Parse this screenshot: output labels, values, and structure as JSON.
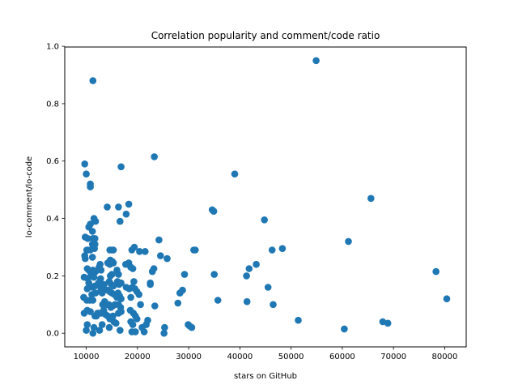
{
  "chart_data": {
    "type": "scatter",
    "title": "Correlation popularity and comment/code ratio",
    "xlabel": "stars on GitHub",
    "ylabel": "lo-comment/lo-code",
    "xlim": [
      5800,
      84200
    ],
    "ylim": [
      -0.0475,
      0.9975
    ],
    "xticks": [
      10000,
      20000,
      30000,
      40000,
      50000,
      60000,
      70000,
      80000
    ],
    "yticks": [
      0.0,
      0.2,
      0.4,
      0.6,
      0.8,
      1.0
    ],
    "xtick_labels": [
      "10000",
      "20000",
      "30000",
      "40000",
      "50000",
      "60000",
      "70000",
      "80000"
    ],
    "ytick_labels": [
      "0.0",
      "0.2",
      "0.4",
      "0.6",
      "0.8",
      "1.0"
    ],
    "grid": false,
    "marker_color": "#1f77b4",
    "points": [
      [
        9700,
        0.59
      ],
      [
        10000,
        0.555
      ],
      [
        10800,
        0.52
      ],
      [
        10800,
        0.51
      ],
      [
        11300,
        0.88
      ],
      [
        9800,
        0.335
      ],
      [
        10300,
        0.33
      ],
      [
        10500,
        0.37
      ],
      [
        10800,
        0.38
      ],
      [
        11500,
        0.4
      ],
      [
        11800,
        0.39
      ],
      [
        11200,
        0.355
      ],
      [
        11300,
        0.33
      ],
      [
        11700,
        0.33
      ],
      [
        11200,
        0.31
      ],
      [
        11700,
        0.31
      ],
      [
        11600,
        0.295
      ],
      [
        11200,
        0.265
      ],
      [
        9800,
        0.26
      ],
      [
        9700,
        0.27
      ],
      [
        10100,
        0.29
      ],
      [
        10300,
        0.29
      ],
      [
        10800,
        0.29
      ],
      [
        10200,
        0.225
      ],
      [
        10500,
        0.22
      ],
      [
        10800,
        0.215
      ],
      [
        11300,
        0.22
      ],
      [
        11800,
        0.215
      ],
      [
        9600,
        0.195
      ],
      [
        10300,
        0.19
      ],
      [
        10900,
        0.2
      ],
      [
        11500,
        0.195
      ],
      [
        10500,
        0.175
      ],
      [
        11200,
        0.16
      ],
      [
        11700,
        0.165
      ],
      [
        10200,
        0.155
      ],
      [
        11100,
        0.135
      ],
      [
        11800,
        0.14
      ],
      [
        9500,
        0.125
      ],
      [
        10100,
        0.115
      ],
      [
        10700,
        0.115
      ],
      [
        11300,
        0.115
      ],
      [
        9600,
        0.07
      ],
      [
        10200,
        0.08
      ],
      [
        10800,
        0.075
      ],
      [
        10000,
        0.01
      ],
      [
        10200,
        0.03
      ],
      [
        11300,
        0.0
      ],
      [
        11500,
        0.02
      ],
      [
        11700,
        0.06
      ],
      [
        12000,
        0.06
      ],
      [
        12200,
        0.07
      ],
      [
        12500,
        0.07
      ],
      [
        12500,
        0.23
      ],
      [
        12700,
        0.24
      ],
      [
        12900,
        0.22
      ],
      [
        12800,
        0.19
      ],
      [
        12400,
        0.175
      ],
      [
        12800,
        0.16
      ],
      [
        12900,
        0.15
      ],
      [
        13100,
        0.14
      ],
      [
        13300,
        0.16
      ],
      [
        13500,
        0.17
      ],
      [
        12600,
        0.01
      ],
      [
        13100,
        0.03
      ],
      [
        13000,
        0.07
      ],
      [
        13400,
        0.08
      ],
      [
        13800,
        0.065
      ],
      [
        13200,
        0.1
      ],
      [
        13600,
        0.11
      ],
      [
        14000,
        0.1
      ],
      [
        14100,
        0.44
      ],
      [
        14200,
        0.245
      ],
      [
        14600,
        0.24
      ],
      [
        14600,
        0.29
      ],
      [
        15000,
        0.29
      ],
      [
        15300,
        0.29
      ],
      [
        14700,
        0.255
      ],
      [
        15100,
        0.25
      ],
      [
        15300,
        0.245
      ],
      [
        14700,
        0.2
      ],
      [
        15000,
        0.205
      ],
      [
        14500,
        0.18
      ],
      [
        14900,
        0.17
      ],
      [
        15300,
        0.165
      ],
      [
        14200,
        0.15
      ],
      [
        14600,
        0.145
      ],
      [
        15000,
        0.14
      ],
      [
        15500,
        0.135
      ],
      [
        14400,
        0.1
      ],
      [
        14800,
        0.09
      ],
      [
        15200,
        0.095
      ],
      [
        15600,
        0.1
      ],
      [
        14200,
        0.06
      ],
      [
        14600,
        0.05
      ],
      [
        14900,
        0.055
      ],
      [
        15200,
        0.06
      ],
      [
        14500,
        0.02
      ],
      [
        15400,
        0.04
      ],
      [
        15800,
        0.035
      ],
      [
        16300,
        0.44
      ],
      [
        16800,
        0.58
      ],
      [
        16600,
        0.39
      ],
      [
        16000,
        0.22
      ],
      [
        16300,
        0.205
      ],
      [
        16100,
        0.18
      ],
      [
        16400,
        0.17
      ],
      [
        16800,
        0.175
      ],
      [
        16200,
        0.14
      ],
      [
        16500,
        0.13
      ],
      [
        16000,
        0.125
      ],
      [
        16800,
        0.12
      ],
      [
        16300,
        0.1
      ],
      [
        16700,
        0.09
      ],
      [
        16300,
        0.07
      ],
      [
        16800,
        0.075
      ],
      [
        16600,
        0.01
      ],
      [
        17800,
        0.415
      ],
      [
        18300,
        0.45
      ],
      [
        17700,
        0.24
      ],
      [
        18300,
        0.245
      ],
      [
        18900,
        0.29
      ],
      [
        19400,
        0.3
      ],
      [
        18700,
        0.23
      ],
      [
        19100,
        0.225
      ],
      [
        17800,
        0.16
      ],
      [
        18400,
        0.155
      ],
      [
        19000,
        0.16
      ],
      [
        19500,
        0.155
      ],
      [
        18700,
        0.125
      ],
      [
        19300,
        0.18
      ],
      [
        19900,
        0.145
      ],
      [
        18600,
        0.08
      ],
      [
        19200,
        0.07
      ],
      [
        19600,
        0.06
      ],
      [
        19900,
        0.05
      ],
      [
        18700,
        0.04
      ],
      [
        19100,
        0.03
      ],
      [
        18900,
        0.005
      ],
      [
        19600,
        0.005
      ],
      [
        20300,
        0.135
      ],
      [
        20600,
        0.1
      ],
      [
        20400,
        0.285
      ],
      [
        21500,
        0.285
      ],
      [
        20900,
        0.02
      ],
      [
        21300,
        0.005
      ],
      [
        21700,
        0.03
      ],
      [
        22000,
        0.045
      ],
      [
        22500,
        0.17
      ],
      [
        22500,
        0.175
      ],
      [
        22900,
        0.215
      ],
      [
        23200,
        0.225
      ],
      [
        23300,
        0.615
      ],
      [
        23400,
        0.095
      ],
      [
        24200,
        0.325
      ],
      [
        24500,
        0.27
      ],
      [
        25200,
        0.0
      ],
      [
        25300,
        0.02
      ],
      [
        25800,
        0.26
      ],
      [
        27900,
        0.105
      ],
      [
        28300,
        0.14
      ],
      [
        28800,
        0.15
      ],
      [
        29200,
        0.205
      ],
      [
        29900,
        0.03
      ],
      [
        30200,
        0.025
      ],
      [
        30600,
        0.02
      ],
      [
        31000,
        0.29
      ],
      [
        31300,
        0.29
      ],
      [
        34600,
        0.43
      ],
      [
        34900,
        0.425
      ],
      [
        35000,
        0.205
      ],
      [
        35700,
        0.115
      ],
      [
        39000,
        0.555
      ],
      [
        41300,
        0.2
      ],
      [
        41400,
        0.11
      ],
      [
        41800,
        0.225
      ],
      [
        43200,
        0.24
      ],
      [
        44800,
        0.395
      ],
      [
        45500,
        0.16
      ],
      [
        46300,
        0.29
      ],
      [
        46500,
        0.1
      ],
      [
        48300,
        0.295
      ],
      [
        51400,
        0.045
      ],
      [
        54900,
        0.95
      ],
      [
        60400,
        0.015
      ],
      [
        61200,
        0.32
      ],
      [
        65600,
        0.47
      ],
      [
        67900,
        0.04
      ],
      [
        68900,
        0.035
      ],
      [
        78300,
        0.215
      ],
      [
        80400,
        0.12
      ]
    ]
  }
}
